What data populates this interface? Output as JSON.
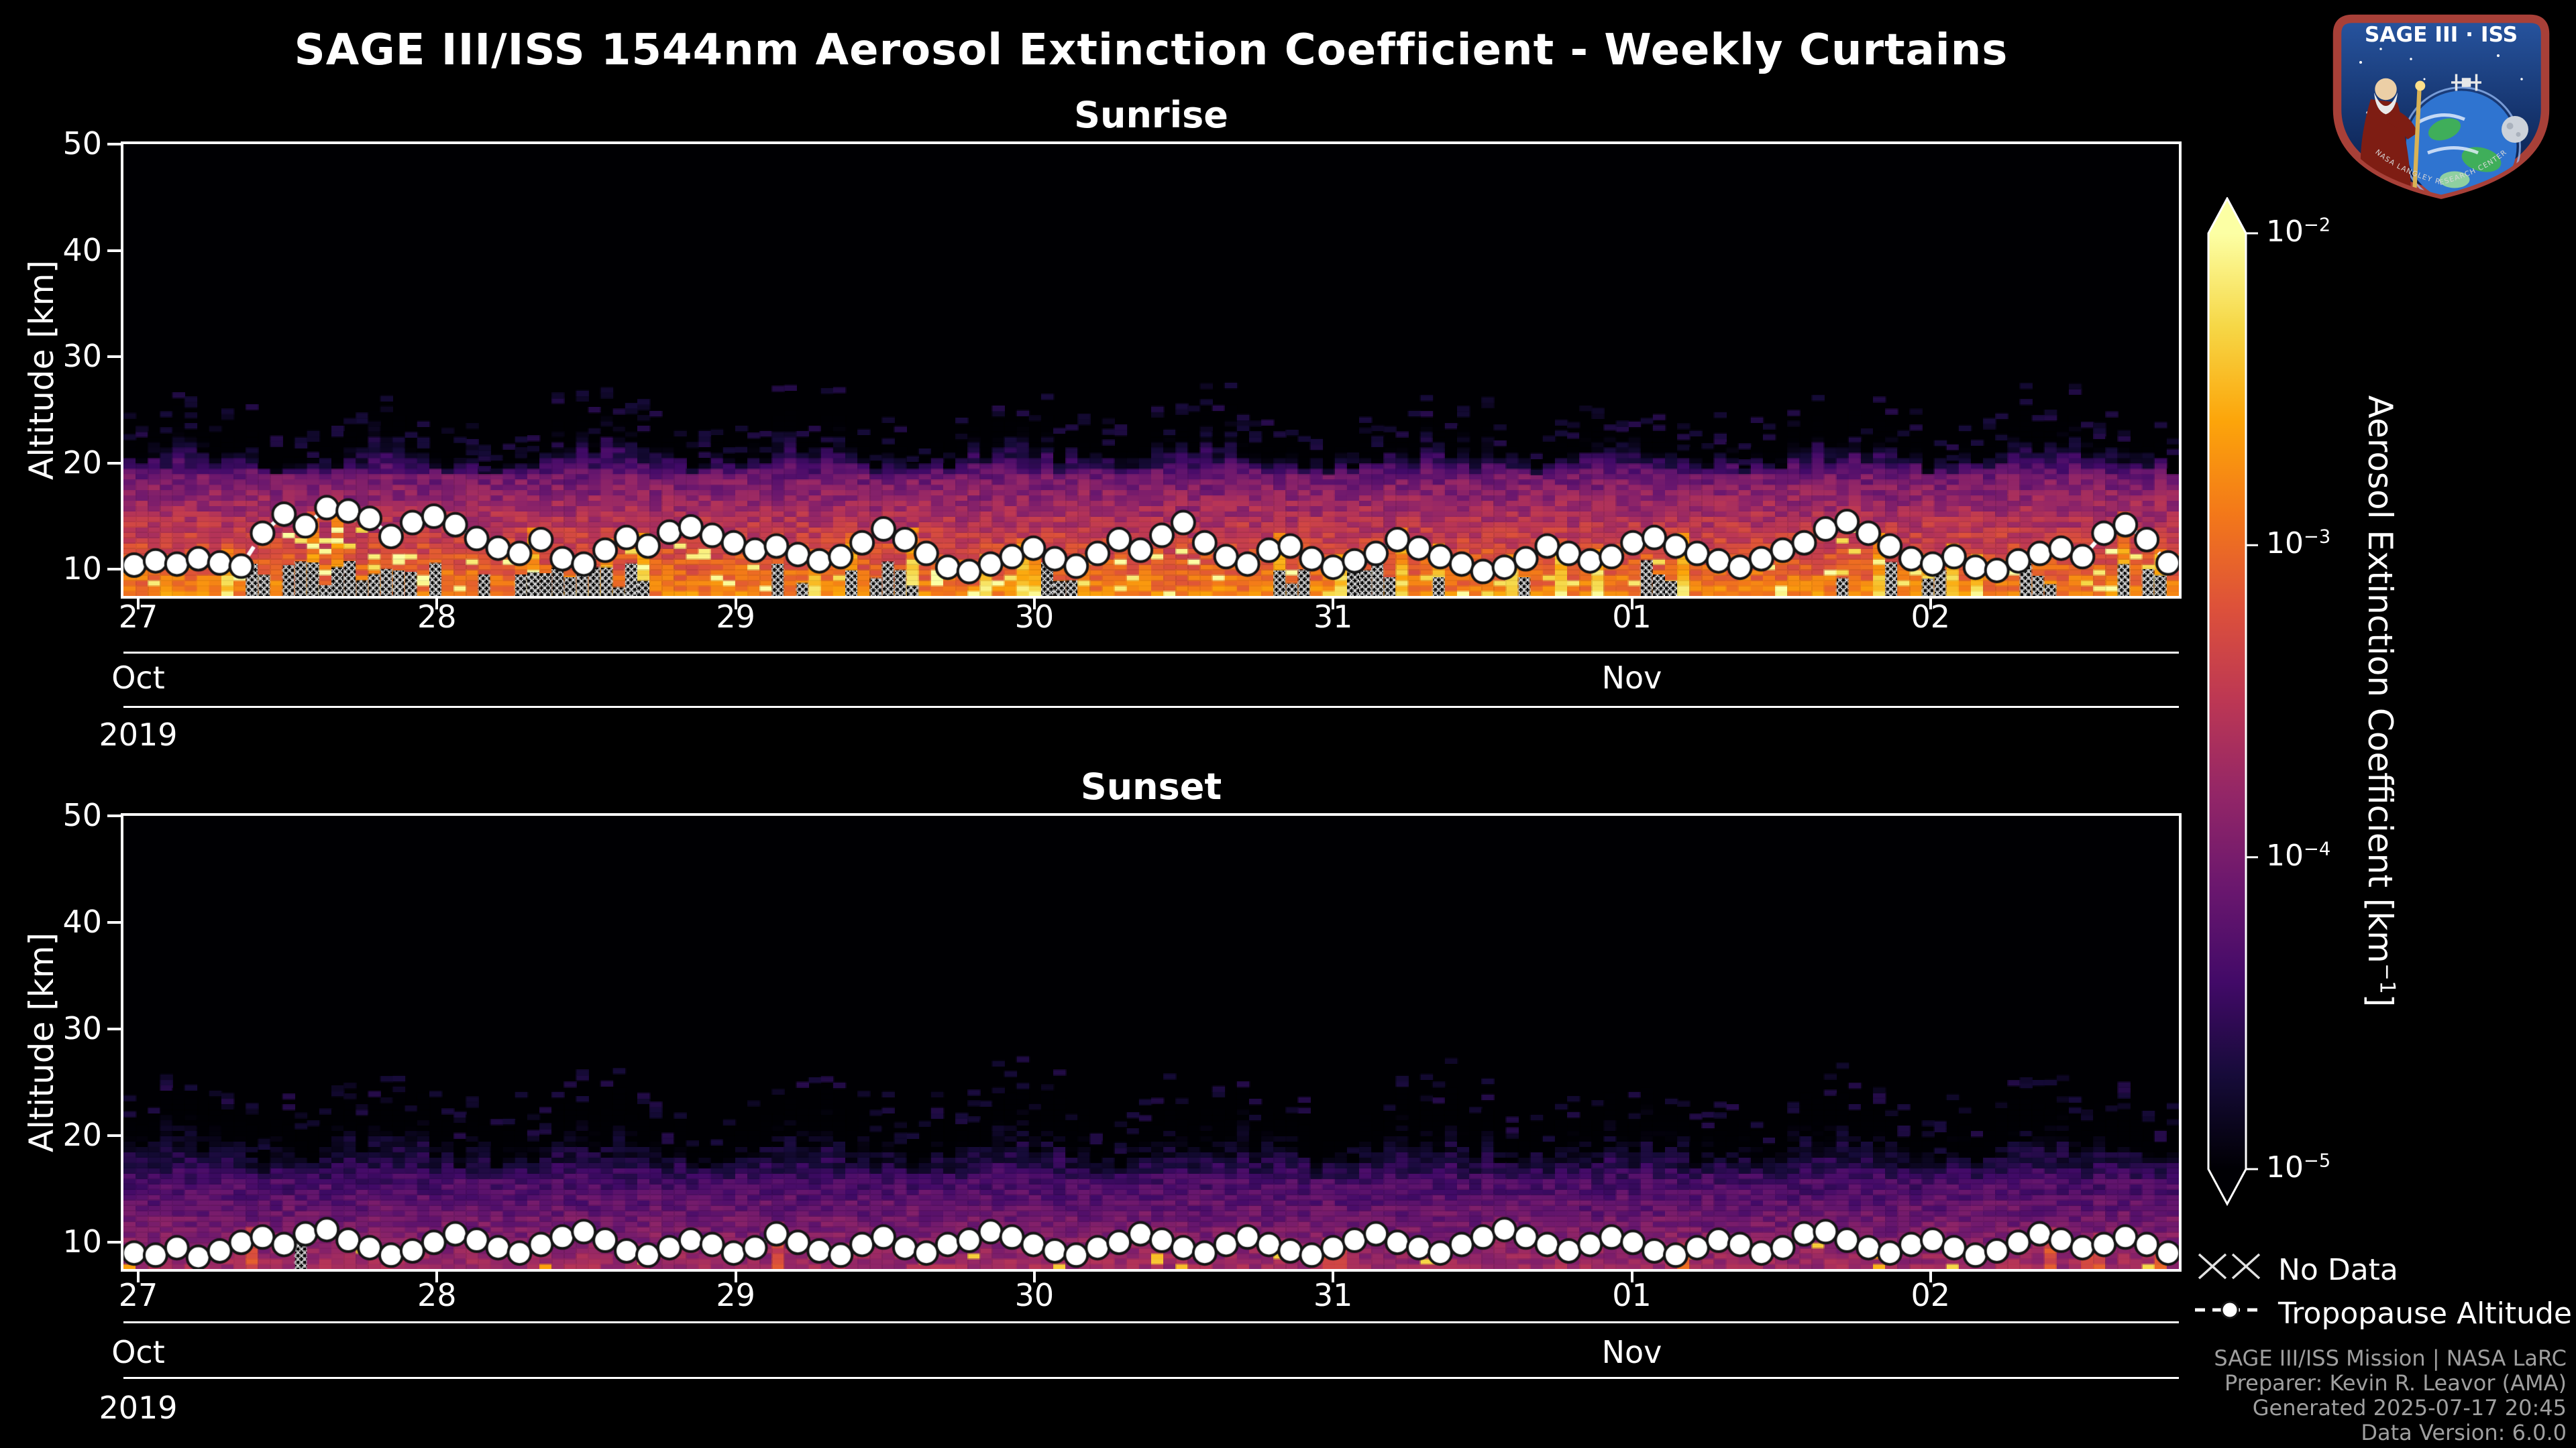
{
  "header": {
    "title": "SAGE III/ISS 1544nm Aerosol Extinction Coefficient - Weekly Curtains"
  },
  "logo": {
    "title": "SAGE III · ISS",
    "ring_text": "NASA LANGLEY RESEARCH CENTER"
  },
  "footer": {
    "lines": [
      "SAGE III/ISS Mission | NASA LaRC",
      "Preparer: Kevin R. Leavor (AMA)",
      "Generated 2025-07-17 20:45",
      "Data Version: 6.0.0"
    ]
  },
  "chart_data": {
    "type": "heatmap",
    "title": "SAGE III/ISS 1544nm Aerosol Extinction Coefficient - Weekly Curtains",
    "x_axis": {
      "start_date": "2019-10-27",
      "end_date": "2019-11-02",
      "day_tick_labels": [
        "27",
        "28",
        "29",
        "30",
        "31",
        "01",
        "02"
      ],
      "month_row": [
        {
          "label": "Oct",
          "tick_index": 0
        },
        {
          "label": "Nov",
          "tick_index": 5
        }
      ],
      "year_label": "2019"
    },
    "y_axis": {
      "label": "Altitude [km]",
      "ticks": [
        50,
        40,
        30,
        20,
        10
      ],
      "range_km": [
        7.5,
        50
      ]
    },
    "color_scale": {
      "label_parts": {
        "pre": "Aerosol Extinction Coefficient [km",
        "sup": "−1",
        "post": "]"
      },
      "scale": "log10",
      "log_min": -5,
      "log_max": -2,
      "ticks": [
        {
          "base": "10",
          "exp": "−2"
        },
        {
          "base": "10",
          "exp": "−3"
        },
        {
          "base": "10",
          "exp": "−4"
        },
        {
          "base": "10",
          "exp": "−5"
        }
      ],
      "colormap": "inferno",
      "stops": [
        [
          0,
          "#000004"
        ],
        [
          0.1,
          "#160b39"
        ],
        [
          0.2,
          "#420a68"
        ],
        [
          0.3,
          "#6a176e"
        ],
        [
          0.4,
          "#932667"
        ],
        [
          0.5,
          "#bc3754"
        ],
        [
          0.6,
          "#dd513a"
        ],
        [
          0.7,
          "#f37819"
        ],
        [
          0.8,
          "#fca50a"
        ],
        [
          0.9,
          "#f6d746"
        ],
        [
          1,
          "#fcffa4"
        ]
      ]
    },
    "legend": [
      {
        "label": "No Data",
        "marker": "x-hatch"
      },
      {
        "label": "Tropopause Altitude",
        "marker": "dashed-line-circle"
      }
    ],
    "panels": [
      {
        "title": "Sunrise",
        "tropopause_km": [
          10.4,
          10.8,
          10.5,
          11.0,
          10.6,
          10.3,
          13.4,
          15.2,
          14.1,
          15.8,
          15.5,
          14.8,
          13.1,
          14.4,
          15.0,
          14.2,
          12.9,
          12.0,
          11.5,
          12.8,
          11.0,
          10.5,
          11.8,
          13.0,
          12.2,
          13.5,
          14.0,
          13.2,
          12.5,
          11.8,
          12.2,
          11.4,
          10.8,
          11.2,
          12.5,
          13.8,
          12.8,
          11.5,
          10.2,
          9.8,
          10.5,
          11.2,
          12.0,
          11.0,
          10.3,
          11.5,
          12.8,
          11.8,
          13.2,
          14.4,
          12.5,
          11.2,
          10.5,
          11.8,
          12.2,
          11.0,
          10.2,
          10.8,
          11.5,
          12.8,
          12.0,
          11.2,
          10.5,
          9.8,
          10.2,
          11.0,
          12.2,
          11.5,
          10.8,
          11.2,
          12.5,
          13.0,
          12.2,
          11.5,
          10.8,
          10.2,
          11.0,
          11.8,
          12.5,
          13.8,
          14.5,
          13.4,
          12.2,
          11.0,
          10.5,
          11.2,
          10.2,
          9.9,
          10.8,
          11.5,
          12.0,
          11.2,
          13.4,
          14.2,
          12.8,
          10.6
        ],
        "heatmap_profile": {
          "seed": 20191027,
          "n_profiles": 168,
          "top_km_mean": 22.0,
          "top_km_jitter": 1.6,
          "fade_start_km": 18.5,
          "band_top_log": -4.05,
          "bottom_log": -2.82,
          "noise": 0.5,
          "bright_col_prob": 0.12,
          "bright_bin_prob": 0.07,
          "bright_log": -2.1,
          "nodata_start_prob": 0.14,
          "nodata_cont_prob": 0.55
        }
      },
      {
        "title": "Sunset",
        "tropopause_km": [
          9.0,
          8.8,
          9.5,
          8.6,
          9.2,
          10.0,
          10.5,
          9.8,
          10.8,
          11.2,
          10.2,
          9.5,
          8.8,
          9.2,
          10.0,
          10.8,
          10.2,
          9.5,
          9.0,
          9.8,
          10.5,
          11.0,
          10.2,
          9.2,
          8.8,
          9.5,
          10.2,
          9.8,
          9.0,
          9.5,
          10.8,
          10.0,
          9.2,
          8.8,
          9.8,
          10.5,
          9.5,
          9.0,
          9.8,
          10.2,
          11.0,
          10.5,
          9.8,
          9.2,
          8.8,
          9.5,
          10.0,
          10.8,
          10.2,
          9.5,
          9.0,
          9.8,
          10.5,
          9.8,
          9.2,
          8.8,
          9.5,
          10.2,
          10.8,
          10.0,
          9.5,
          9.0,
          9.8,
          10.5,
          11.2,
          10.5,
          9.8,
          9.2,
          9.8,
          10.5,
          10.0,
          9.2,
          8.8,
          9.5,
          10.2,
          9.8,
          9.0,
          9.5,
          10.8,
          11.0,
          10.2,
          9.5,
          9.0,
          9.8,
          10.2,
          9.5,
          8.8,
          9.2,
          10.0,
          10.8,
          10.2,
          9.5,
          9.8,
          10.5,
          9.8,
          9.0
        ],
        "heatmap_profile": {
          "seed": 20191102,
          "n_profiles": 168,
          "top_km_mean": 21.2,
          "top_km_jitter": 1.9,
          "fade_start_km": 15.5,
          "band_top_log": -4.35,
          "bottom_log": -3.72,
          "noise": 0.42,
          "bright_col_prob": 0.05,
          "bright_bin_prob": 0.035,
          "bright_log": -2.45,
          "nodata_start_prob": 0.05,
          "nodata_cont_prob": 0.5
        }
      }
    ]
  }
}
